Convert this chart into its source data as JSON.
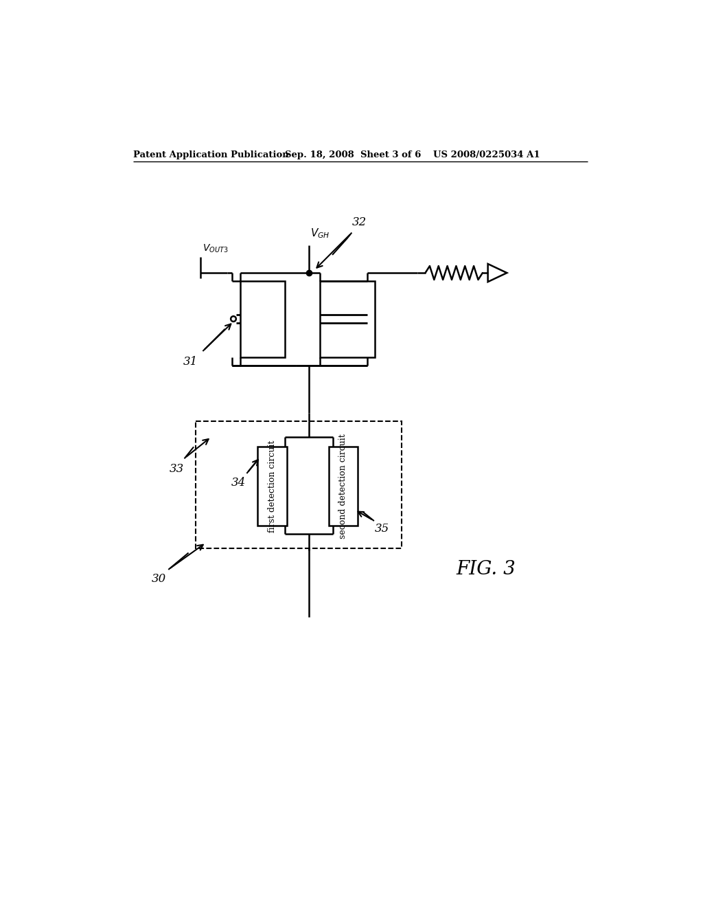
{
  "bg_color": "#ffffff",
  "line_color": "#000000",
  "header_left": "Patent Application Publication",
  "header_center": "Sep. 18, 2008  Sheet 3 of 6",
  "header_right": "US 2008/0225034 A1",
  "fig_label": "FIG. 3",
  "label_30": "30",
  "label_31": "31",
  "label_32": "32",
  "label_33": "33",
  "label_34": "34",
  "label_35": "35"
}
